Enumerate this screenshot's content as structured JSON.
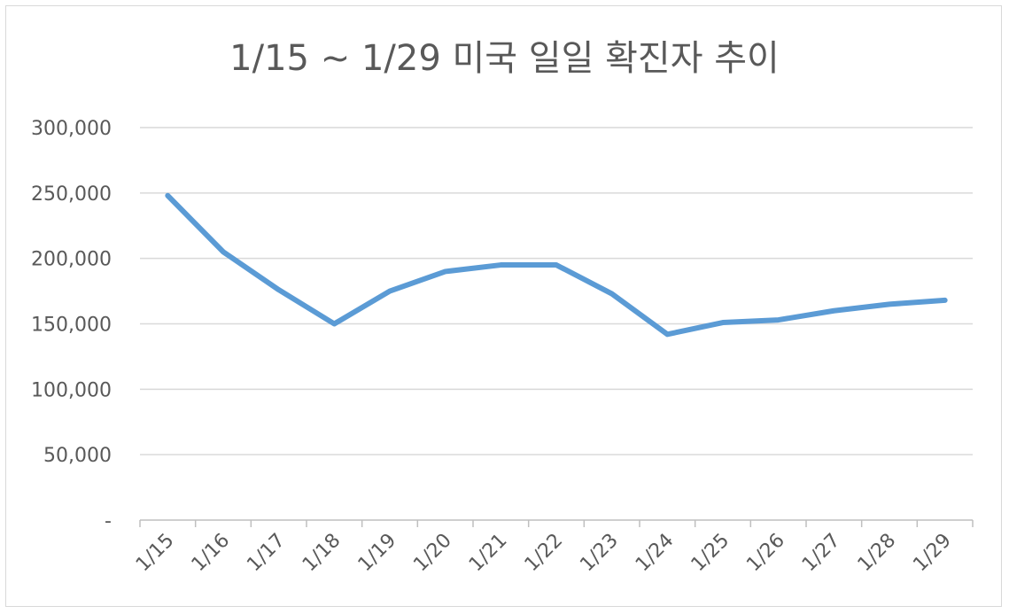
{
  "chart_data": {
    "type": "line",
    "title": "1/15 ~ 1/29 미국 일일 확진자 추이",
    "xlabel": "",
    "ylabel": "",
    "categories": [
      "1/15",
      "1/16",
      "1/17",
      "1/18",
      "1/19",
      "1/20",
      "1/21",
      "1/22",
      "1/23",
      "1/24",
      "1/25",
      "1/26",
      "1/27",
      "1/28",
      "1/29"
    ],
    "series": [
      {
        "values": [
          248000,
          205000,
          176000,
          150000,
          175000,
          190000,
          195000,
          195000,
          173000,
          142000,
          151000,
          153000,
          160000,
          165000,
          168000
        ],
        "color": "#5b9bd5"
      }
    ],
    "ylim": [
      0,
      300000
    ],
    "yticks": [
      {
        "value": 0,
        "label": "-"
      },
      {
        "value": 50000,
        "label": "50,000"
      },
      {
        "value": 100000,
        "label": "100,000"
      },
      {
        "value": 150000,
        "label": "150,000"
      },
      {
        "value": 200000,
        "label": "200,000"
      },
      {
        "value": 250000,
        "label": "250,000"
      },
      {
        "value": 300000,
        "label": "300,000"
      }
    ],
    "grid": true,
    "legend": "none"
  }
}
